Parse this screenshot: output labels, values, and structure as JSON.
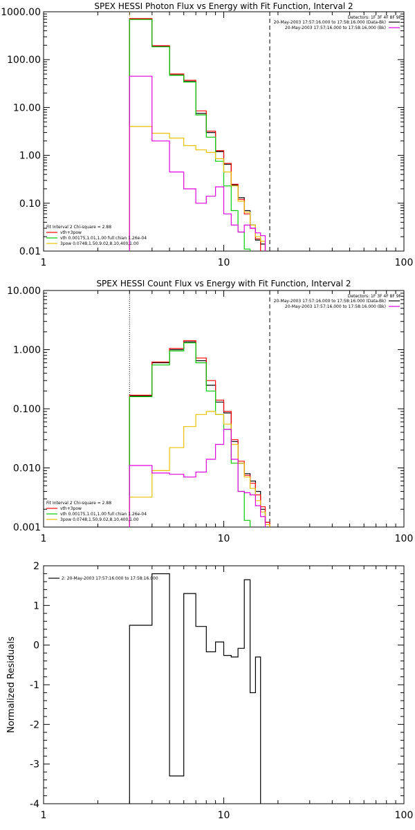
{
  "chart_data": [
    {
      "type": "line",
      "title": "SPEX HESSI Photon Flux vs Energy with Fit Function, Interval 2",
      "xlabel": "",
      "ylabel": "",
      "xscale": "log",
      "yscale": "log",
      "xlim": [
        1,
        100
      ],
      "ylim": [
        0.01,
        1000
      ],
      "x_ticks": [
        "1",
        "10",
        "100"
      ],
      "y_ticks": [
        "0.01",
        "0.10",
        "1.00",
        "10.00",
        "100.00",
        "1000.00"
      ],
      "detectors_label": "Detectors: 1F 3F 4F 8F 9F",
      "legend_top": [
        {
          "text": "20-May-2003 17:57:16.000 to 17:58:16.000 (Data-Bk)",
          "color": "#000000"
        },
        {
          "text": "20-May-2003 17:57:16.000 to 17:58:16.000 (Bk)",
          "color": "#e000e0"
        }
      ],
      "fit_header": "Fit Interval  2   Chi-square = 2.88",
      "legend_bottom": [
        {
          "text": "vth+3pow",
          "color": "#ff0000"
        },
        {
          "text": "vth 0.00175,1.01,1.00  full chian 1.26e-04",
          "color": "#00cc00"
        },
        {
          "text": "3pow 0.0748,1.50,9.02,8.10,400,1.00",
          "color": "#e8c000"
        }
      ],
      "bin_edges": [
        3,
        4,
        5,
        6,
        7,
        8,
        9,
        10,
        11,
        12,
        13,
        14,
        15,
        16,
        17,
        18,
        20
      ],
      "series": [
        {
          "color": "#000000",
          "values": [
            700,
            190,
            48,
            35,
            7.5,
            3.0,
            1.2,
            0.65,
            0.24,
            0.13,
            0.07,
            0.035,
            0.017,
            0.014
          ]
        },
        {
          "color": "#ff0000",
          "values": [
            720,
            195,
            50,
            37,
            8.5,
            3.2,
            1.25,
            0.68,
            0.25,
            0.12,
            0.06,
            0.03,
            0.018
          ]
        },
        {
          "color": "#00cc00",
          "values": [
            690,
            185,
            47,
            34,
            7.0,
            2.4,
            0.75,
            0.23,
            0.07,
            0.025,
            0.011
          ]
        },
        {
          "color": "#e8c000",
          "values": [
            4.0,
            2.9,
            2.3,
            1.6,
            1.3,
            1.15,
            0.85,
            0.45,
            0.23,
            0.11,
            0.065,
            0.035,
            0.02,
            0.016
          ]
        },
        {
          "color": "#e000e0",
          "values": [
            45,
            2.0,
            0.45,
            0.2,
            0.1,
            0.14,
            0.22,
            0.06,
            0.035,
            0.025,
            0.035,
            0.03,
            0.024,
            0.021
          ]
        }
      ],
      "vlines": [
        {
          "x": 3,
          "style": "dotted",
          "color": "#e8c000"
        },
        {
          "x": 18,
          "style": "dashed",
          "color": "#000000"
        }
      ]
    },
    {
      "type": "line",
      "title": "SPEX HESSI Count Flux vs Energy with Fit Function, Interval 2",
      "xlabel": "",
      "ylabel": "",
      "xscale": "log",
      "yscale": "log",
      "xlim": [
        1,
        100
      ],
      "ylim": [
        0.001,
        10
      ],
      "x_ticks": [
        "1",
        "10",
        "100"
      ],
      "y_ticks": [
        "0.001",
        "0.010",
        "0.100",
        "1.000",
        "10.000"
      ],
      "detectors_label": "Detectors: 1F 3F 4F 8F 9F",
      "legend_top": [
        {
          "text": "20-May-2003 17:57:16.000 to 17:58:16.000 (Data-Bk)",
          "color": "#000000"
        },
        {
          "text": "20-May-2003 17:57:16.000 to 17:58:16.000 (Bk)",
          "color": "#e000e0"
        }
      ],
      "fit_header": "Fit Interval  2   Chi-square = 2.88",
      "legend_bottom": [
        {
          "text": "vth+3pow",
          "color": "#ff0000"
        },
        {
          "text": "vth 0.00175,1.01,1.00  full chian 1.26e-04",
          "color": "#00cc00"
        },
        {
          "text": "3pow 0.0748,1.50,9.02,8.10,400,1.00",
          "color": "#e8c000"
        }
      ],
      "bin_edges": [
        3,
        4,
        5,
        6,
        7,
        8,
        9,
        10,
        11,
        12,
        13,
        14,
        15,
        16,
        17,
        18,
        20
      ],
      "series": [
        {
          "color": "#000000",
          "values": [
            0.165,
            0.6,
            1.0,
            1.35,
            0.65,
            0.25,
            0.13,
            0.085,
            0.028,
            0.012,
            0.008,
            0.006,
            0.004,
            0.002,
            0.0012
          ]
        },
        {
          "color": "#ff0000",
          "values": [
            0.17,
            0.62,
            1.05,
            1.42,
            0.72,
            0.3,
            0.14,
            0.09,
            0.03,
            0.013,
            0.0075,
            0.0055,
            0.0035,
            0.0022,
            0.0012
          ]
        },
        {
          "color": "#00cc00",
          "values": [
            0.16,
            0.55,
            0.95,
            1.3,
            0.6,
            0.2,
            0.08,
            0.045,
            0.012,
            0.004,
            0.0013
          ]
        },
        {
          "color": "#e8c000",
          "values": [
            0.0032,
            0.009,
            0.022,
            0.05,
            0.08,
            0.09,
            0.08,
            0.055,
            0.025,
            0.012,
            0.007,
            0.0045,
            0.0028,
            0.0018,
            0.0011
          ]
        },
        {
          "color": "#e000e0",
          "values": [
            0.011,
            0.0082,
            0.0078,
            0.007,
            0.0085,
            0.014,
            0.025,
            0.045,
            0.014,
            0.004,
            0.0038,
            0.0035,
            0.0023,
            0.0015
          ]
        }
      ],
      "vlines": [
        {
          "x": 3,
          "style": "dotted",
          "color": "#000000"
        },
        {
          "x": 18,
          "style": "dashed",
          "color": "#000000"
        }
      ]
    },
    {
      "type": "line",
      "title": "",
      "xlabel": "",
      "ylabel": "Normalized Residuals",
      "xscale": "log",
      "yscale": "linear",
      "xlim": [
        1,
        100
      ],
      "ylim": [
        -4,
        2
      ],
      "x_ticks": [
        "1",
        "10",
        "100"
      ],
      "y_ticks": [
        "-4",
        "-3",
        "-2",
        "-1",
        "0",
        "1",
        "2"
      ],
      "legend": [
        {
          "text": "2: 20-May-2003 17:57:16.000 to 17:58:16.000",
          "color": "#000000"
        }
      ],
      "bin_edges": [
        3,
        4,
        5,
        6,
        7,
        8,
        9,
        10,
        11,
        12,
        13,
        14,
        15,
        16,
        17,
        18
      ],
      "series": [
        {
          "color": "#000000",
          "values": [
            0.5,
            1.8,
            -3.3,
            1.3,
            0.47,
            -0.17,
            0.08,
            -0.26,
            -0.3,
            -0.08,
            1.65,
            -1.2,
            -0.3
          ]
        }
      ]
    }
  ]
}
